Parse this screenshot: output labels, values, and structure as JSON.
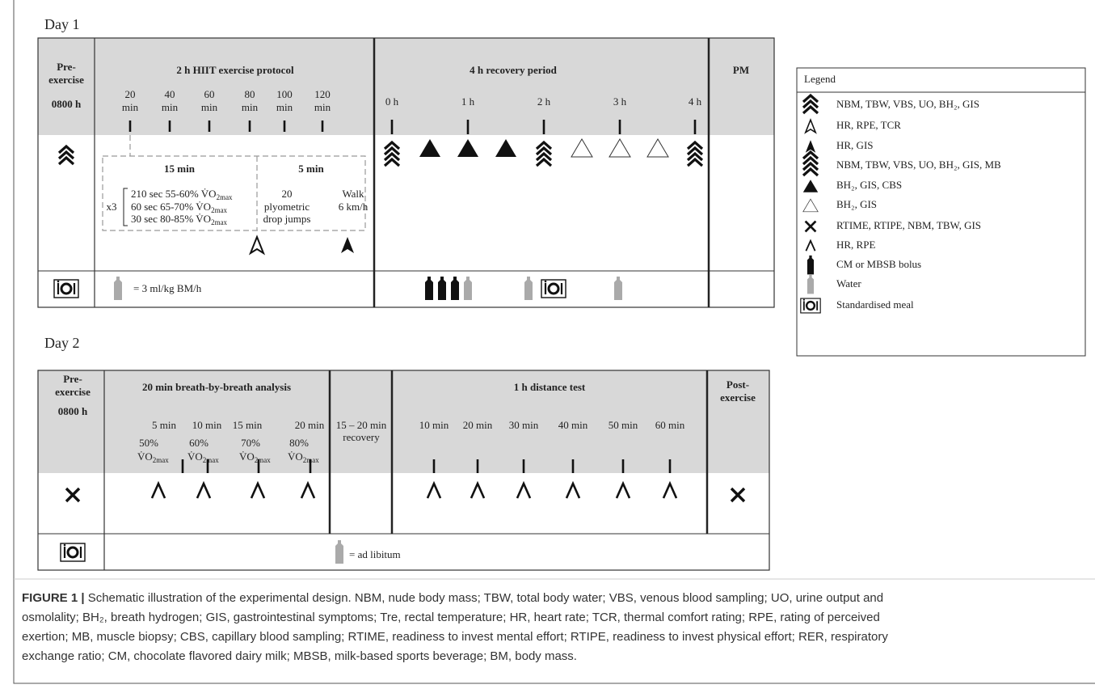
{
  "day1": {
    "label": "Day 1",
    "pre": {
      "title": [
        "Pre-",
        "exercise"
      ],
      "time": "0800 h"
    },
    "hiit": {
      "title": "2 h HIIT exercise protocol",
      "times": [
        [
          "20",
          "min"
        ],
        [
          "40",
          "min"
        ],
        [
          "60",
          "min"
        ],
        [
          "80",
          "min"
        ],
        [
          "100",
          "min"
        ],
        [
          "120",
          "min"
        ]
      ],
      "block1": {
        "title": "15 min",
        "reps": "x3",
        "lines": [
          [
            "210 sec 55-60% V̇O",
            "2max"
          ],
          [
            "60 sec 65-70% V̇O",
            "2max"
          ],
          [
            "30 sec 80-85% V̇O",
            "2max"
          ]
        ]
      },
      "block2": {
        "title": "5 min",
        "plyo": [
          "20",
          "plyometric",
          "drop jumps"
        ],
        "walk": [
          "Walk",
          "6 km/h"
        ]
      },
      "water": "= 3 ml/kg BM/h"
    },
    "recovery": {
      "title": "4 h recovery period",
      "times": [
        "0 h",
        "1 h",
        "2 h",
        "3 h",
        "4 h"
      ]
    },
    "pm": {
      "title": "PM"
    }
  },
  "day2": {
    "label": "Day 2",
    "pre": {
      "title": [
        "Pre-",
        "exercise"
      ],
      "time": "0800 h"
    },
    "breath": {
      "title": "20 min breath-by-breath analysis",
      "times": [
        "5 min",
        "10 min",
        "15 min",
        "20 min"
      ],
      "intensities": [
        [
          "50%",
          "V̇O",
          "2max"
        ],
        [
          "60%",
          "V̇O",
          "2max"
        ],
        [
          "70%",
          "V̇O",
          "2max"
        ],
        [
          "80%",
          "V̇O",
          "2max"
        ]
      ]
    },
    "recovery": {
      "title": [
        "15 – 20 min",
        "recovery"
      ]
    },
    "distance": {
      "title": "1 h distance test",
      "times": [
        "10 min",
        "20 min",
        "30 min",
        "40 min",
        "50 min",
        "60 min"
      ]
    },
    "post": {
      "title": [
        "Post-",
        "exercise"
      ]
    },
    "water": "= ad libitum"
  },
  "legend": {
    "title": "Legend",
    "items": [
      "NBM, TBW, VBS, UO, BH₂, GIS",
      "HR, RPE, TCR",
      "HR, GIS",
      "NBM, TBW, VBS, UO, BH₂, GIS, MB",
      "BH₂, GIS, CBS",
      "BH₂, GIS",
      "RTIME, RTIPE, NBM, TBW, GIS",
      "HR, RPE",
      "CM or MBSB bolus",
      "Water",
      "Standardised meal"
    ]
  },
  "caption": {
    "label": "FIGURE 1 |",
    "lines": [
      " Schematic illustration of the experimental design. NBM, nude body mass; TBW, total body water; VBS, venous blood sampling; UO, urine output and",
      "osmolality; BH₂, breath hydrogen; GIS, gastrointestinal symptoms; Tre, rectal temperature; HR, heart rate; TCR, thermal comfort rating; RPE, rating of perceived",
      "exertion; MB, muscle biopsy; CBS, capillary blood sampling; RTIME, readiness to invest mental effort; RTIPE, readiness to invest physical effort; RER, respiratory",
      "exchange ratio; CM, chocolate flavored dairy milk; MBSB, milk-based sports beverage; BM, body mass."
    ]
  }
}
